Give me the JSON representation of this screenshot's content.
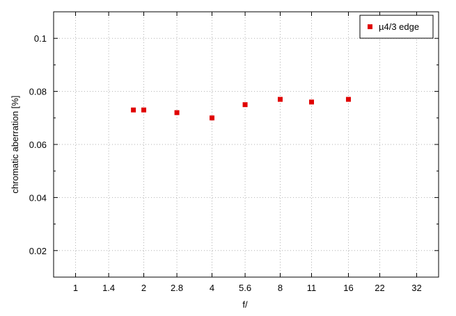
{
  "chart_data": {
    "type": "scatter",
    "xlabel": "f/",
    "ylabel": "chromatic aberration [%]",
    "x_scale": "log2",
    "xlim": [
      0.8,
      40
    ],
    "ylim": [
      0.01,
      0.11
    ],
    "x_ticks": [
      {
        "value": 1,
        "label": "1"
      },
      {
        "value": 1.4,
        "label": "1.4"
      },
      {
        "value": 2,
        "label": "2"
      },
      {
        "value": 2.8,
        "label": "2.8"
      },
      {
        "value": 4,
        "label": "4"
      },
      {
        "value": 5.6,
        "label": "5.6"
      },
      {
        "value": 8,
        "label": "8"
      },
      {
        "value": 11,
        "label": "11"
      },
      {
        "value": 16,
        "label": "16"
      },
      {
        "value": 22,
        "label": "22"
      },
      {
        "value": 32,
        "label": "32"
      }
    ],
    "y_ticks": [
      {
        "value": 0.02,
        "label": "0.02"
      },
      {
        "value": 0.04,
        "label": "0.04"
      },
      {
        "value": 0.06,
        "label": "0.06"
      },
      {
        "value": 0.08,
        "label": "0.08"
      },
      {
        "value": 0.1,
        "label": "0.1"
      }
    ],
    "grid": true,
    "legend_position": "top-right",
    "series": [
      {
        "name": "µ4/3 edge",
        "color": "#e00000",
        "marker": "square",
        "points": [
          {
            "x": 1.8,
            "y": 0.073
          },
          {
            "x": 2,
            "y": 0.073
          },
          {
            "x": 2.8,
            "y": 0.072
          },
          {
            "x": 4,
            "y": 0.07
          },
          {
            "x": 5.6,
            "y": 0.075
          },
          {
            "x": 8,
            "y": 0.077
          },
          {
            "x": 11,
            "y": 0.076
          },
          {
            "x": 16,
            "y": 0.077
          }
        ]
      }
    ]
  }
}
